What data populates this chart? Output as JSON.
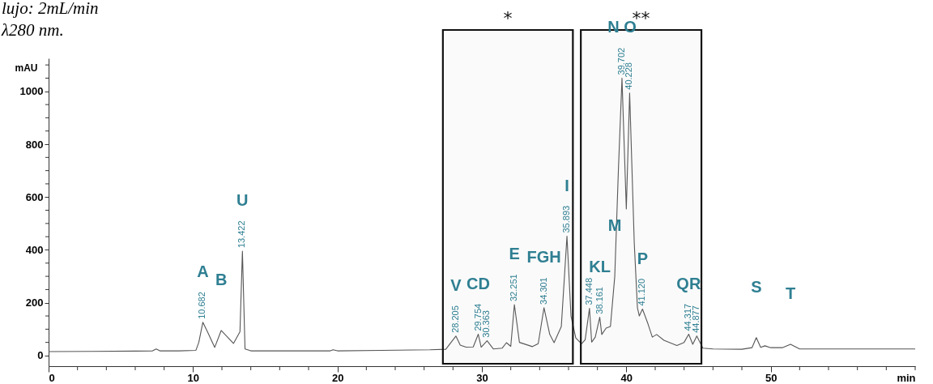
{
  "chart_data": {
    "type": "line",
    "xlabel": "min",
    "ylabel": "mAU",
    "x": [
      0,
      3,
      6,
      7.2,
      7.45,
      7.7,
      9,
      10.2,
      10.4,
      10.68,
      11.0,
      11.5,
      11.95,
      12.8,
      13.25,
      13.42,
      13.6,
      14,
      17,
      19.5,
      19.7,
      20,
      23,
      26.4,
      27.5,
      28.2,
      28.5,
      28.9,
      29.4,
      29.75,
      29.95,
      30.36,
      30.8,
      31.4,
      31.7,
      32.0,
      32.25,
      32.6,
      33.5,
      33.9,
      34.3,
      34.7,
      35.0,
      35.5,
      35.89,
      36.17,
      36.5,
      36.9,
      37.15,
      37.45,
      37.6,
      37.85,
      38.16,
      38.3,
      38.6,
      38.9,
      39.2,
      39.45,
      39.7,
      39.85,
      40.0,
      40.23,
      40.55,
      40.77,
      40.9,
      41.12,
      41.5,
      41.8,
      42.1,
      42.6,
      43.5,
      44.0,
      44.32,
      44.6,
      44.88,
      45.3,
      46,
      48,
      48.7,
      49.0,
      49.3,
      49.6,
      50.0,
      50.8,
      51.37,
      52,
      55,
      60
    ],
    "series": [
      {
        "color": "#555555",
        "values": [
          15,
          16,
          17,
          18,
          25,
          18,
          18,
          20,
          50,
          126,
          90,
          31,
          95,
          46,
          90,
          395,
          25,
          18,
          18,
          18,
          22,
          18,
          20,
          22,
          24,
          74,
          40,
          32,
          33,
          81,
          32,
          56,
          25,
          28,
          49,
          35,
          193,
          50,
          34,
          45,
          181,
          80,
          49,
          110,
          452,
          150,
          67,
          45,
          60,
          179,
          51,
          70,
          145,
          80,
          104,
          110,
          300,
          700,
          1050,
          800,
          555,
          994,
          426,
          181,
          150,
          176,
          120,
          70,
          80,
          58,
          38,
          50,
          81,
          43,
          74,
          28,
          25,
          24,
          30,
          68,
          31,
          37,
          30,
          30,
          43,
          25,
          25,
          25
        ]
      }
    ],
    "xlim": [
      0,
      60
    ],
    "xticks": [
      0,
      {
        "value": 2,
        "label": null
      },
      {
        "value": 4,
        "label": null
      },
      {
        "value": 6,
        "label": null
      },
      {
        "value": 8,
        "label": null
      },
      10,
      {
        "value": 12,
        "label": null
      },
      {
        "value": 14,
        "label": null
      },
      {
        "value": 16,
        "label": null
      },
      {
        "value": 18,
        "label": null
      },
      20,
      {
        "value": 22,
        "label": null
      },
      {
        "value": 24,
        "label": null
      },
      {
        "value": 26,
        "label": null
      },
      {
        "value": 28,
        "label": null
      },
      30,
      {
        "value": 32,
        "label": null
      },
      {
        "value": 34,
        "label": null
      },
      {
        "value": 36,
        "label": null
      },
      {
        "value": 38,
        "label": null
      },
      40,
      {
        "value": 42,
        "label": null
      },
      {
        "value": 44,
        "label": null
      },
      {
        "value": 46,
        "label": null
      },
      {
        "value": 48,
        "label": null
      },
      50,
      {
        "value": 52,
        "label": null
      },
      {
        "value": 54,
        "label": null
      },
      {
        "value": 56,
        "label": null
      },
      {
        "value": 58,
        "label": null
      },
      {
        "value": 60,
        "label": null
      }
    ],
    "ylim": [
      -40,
      1125
    ],
    "yticks": [
      0,
      {
        "value": 50,
        "label": null
      },
      {
        "value": 100,
        "label": null
      },
      {
        "value": 150,
        "label": null
      },
      200,
      {
        "value": 250,
        "label": null
      },
      {
        "value": 300,
        "label": null
      },
      {
        "value": 350,
        "label": null
      },
      400,
      {
        "value": 450,
        "label": null
      },
      {
        "value": 500,
        "label": null
      },
      {
        "value": 550,
        "label": null
      },
      600,
      {
        "value": 650,
        "label": null
      },
      {
        "value": 700,
        "label": null
      },
      {
        "value": 750,
        "label": null
      },
      800,
      {
        "value": 850,
        "label": null
      },
      {
        "value": 900,
        "label": null
      },
      {
        "value": 950,
        "label": null
      },
      1000,
      {
        "value": 1050,
        "label": null
      },
      {
        "value": 1100,
        "label": null
      }
    ],
    "grid": false,
    "bands": [
      {
        "axis": "x",
        "from": 27.3,
        "to": 36.3,
        "label": "*"
      },
      {
        "axis": "x",
        "from": 36.85,
        "to": 45.2,
        "label": "**"
      }
    ],
    "annotations": [
      "lujo: 2mL/min",
      "λ280 nm.",
      {
        "text": "A",
        "x": 10.68,
        "y": 126
      },
      {
        "text": "B",
        "x": 11.95,
        "y": 95
      },
      {
        "text": "U",
        "x": 13.42,
        "y": 395
      },
      {
        "text": "V",
        "x": 28.2,
        "y": 74
      },
      {
        "text": "CD",
        "x": 29.75,
        "y": 81
      },
      {
        "text": "E",
        "x": 32.25,
        "y": 193
      },
      {
        "text": "FGH",
        "x": 34.3,
        "y": 181
      },
      {
        "text": "I",
        "x": 35.89,
        "y": 452
      },
      {
        "text": "KL",
        "x": 38.16,
        "y": 145
      },
      {
        "text": "M",
        "x": 39.2,
        "y": 300
      },
      {
        "text": "N O",
        "x": 39.7,
        "y": 1050
      },
      {
        "text": "P",
        "x": 41.12,
        "y": 176
      },
      {
        "text": "QR",
        "x": 44.32,
        "y": 81
      },
      {
        "text": "S",
        "x": 49.0,
        "y": 68
      },
      {
        "text": "T",
        "x": 51.37,
        "y": 43
      },
      {
        "text": "10.682",
        "x": 10.68,
        "y": 126
      },
      {
        "text": "13.422",
        "x": 13.42,
        "y": 395
      },
      {
        "text": "28.205",
        "x": 28.2,
        "y": 74
      },
      {
        "text": "29.754",
        "x": 29.75,
        "y": 81
      },
      {
        "text": "30.363",
        "x": 30.36,
        "y": 56
      },
      {
        "text": "32.251",
        "x": 32.25,
        "y": 193
      },
      {
        "text": "34.301",
        "x": 34.3,
        "y": 181
      },
      {
        "text": "35.893",
        "x": 35.89,
        "y": 452
      },
      {
        "text": "37.448",
        "x": 37.45,
        "y": 179
      },
      {
        "text": "38.161",
        "x": 38.16,
        "y": 145
      },
      {
        "text": "39.702",
        "x": 39.7,
        "y": 1050
      },
      {
        "text": "40.228",
        "x": 40.23,
        "y": 994
      },
      {
        "text": "41.120",
        "x": 41.12,
        "y": 176
      },
      {
        "text": "44.317",
        "x": 44.32,
        "y": 81
      },
      {
        "text": "44.877",
        "x": 44.88,
        "y": 74
      }
    ]
  }
}
